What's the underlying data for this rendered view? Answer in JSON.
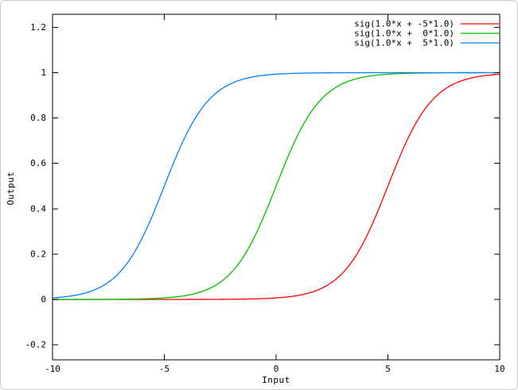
{
  "window": {
    "background": "#ffffff",
    "frame_border_color": "#c9c9c9"
  },
  "chart_data": {
    "type": "line",
    "title": "",
    "xlabel": "Input",
    "ylabel": "Output",
    "xlim": [
      -10,
      10
    ],
    "ylim": [
      -0.2,
      1.2
    ],
    "grid": false,
    "legend_position": "top-right-inside",
    "axis_color": "#000000",
    "text_color": "#000000",
    "x_tick_values": [
      -10,
      -5,
      0,
      5,
      10
    ],
    "x_tick_labels": [
      "-10",
      "-5",
      "0",
      "5",
      "10"
    ],
    "y_tick_values": [
      -0.2,
      0,
      0.2,
      0.4,
      0.6,
      0.8,
      1,
      1.2
    ],
    "y_tick_labels": [
      "-0.2",
      "0",
      "0.2",
      "0.4",
      "0.6",
      "0.8",
      "1",
      "1.2"
    ],
    "x_samples": [
      -10,
      -9,
      -8,
      -7,
      -6,
      -5,
      -4,
      -3,
      -2,
      -1,
      0,
      1,
      2,
      3,
      4,
      5,
      6,
      7,
      8,
      9,
      10
    ],
    "series": [
      {
        "name": "sig(1.0*x + -5*1.0)",
        "color": "#ff0000",
        "function": "sigmoid(weight*x + bias)",
        "weight": 1.0,
        "bias": -5.0,
        "y_samples": [
          0.0,
          0.0,
          0.0,
          0.0,
          0.0,
          0.0,
          0.0001,
          0.0003,
          0.0009,
          0.0025,
          0.0067,
          0.018,
          0.0474,
          0.1192,
          0.2689,
          0.5,
          0.7311,
          0.8808,
          0.9526,
          0.982,
          0.9933
        ]
      },
      {
        "name": "sig(1.0*x +  0*1.0)",
        "color": "#00c000",
        "function": "sigmoid(weight*x + bias)",
        "weight": 1.0,
        "bias": 0.0,
        "y_samples": [
          0.0,
          0.0001,
          0.0003,
          0.0009,
          0.0025,
          0.0067,
          0.018,
          0.0474,
          0.1192,
          0.2689,
          0.5,
          0.7311,
          0.8808,
          0.9526,
          0.982,
          0.9933,
          0.9975,
          0.9991,
          0.9997,
          0.9999,
          1.0
        ]
      },
      {
        "name": "sig(1.0*x +  5*1.0)",
        "color": "#0080ff",
        "function": "sigmoid(weight*x + bias)",
        "weight": 1.0,
        "bias": 5.0,
        "y_samples": [
          0.0067,
          0.018,
          0.0474,
          0.1192,
          0.2689,
          0.5,
          0.7311,
          0.8808,
          0.9526,
          0.982,
          0.9933,
          0.9975,
          0.9991,
          0.9997,
          0.9999,
          1.0,
          1.0,
          1.0,
          1.0,
          1.0,
          1.0
        ]
      }
    ]
  }
}
